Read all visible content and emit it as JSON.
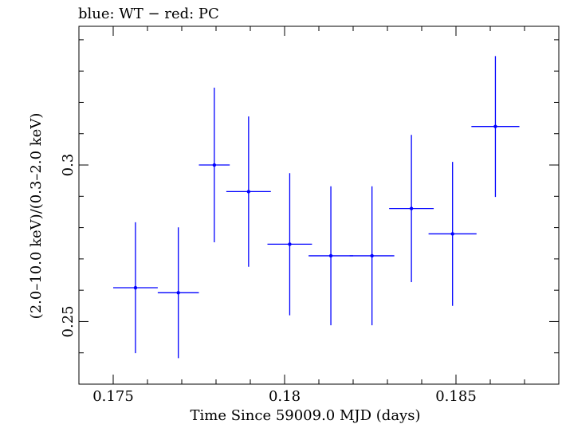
{
  "chart_data": {
    "type": "scatter",
    "title": "blue: WT − red: PC",
    "xlabel": "Time Since 59009.0 MJD (days)",
    "ylabel": "(2.0–10.0 keV)/(0.3–2.0 keV)",
    "xlim": [
      0.174,
      0.188
    ],
    "ylim": [
      0.23,
      0.3443
    ],
    "x_ticks": [
      {
        "value": 0.175,
        "label": "0.175"
      },
      {
        "value": 0.18,
        "label": "0.18"
      },
      {
        "value": 0.185,
        "label": "0.185"
      }
    ],
    "y_ticks": [
      {
        "value": 0.25,
        "label": "0.25"
      },
      {
        "value": 0.3,
        "label": "0.3"
      }
    ],
    "grid": false,
    "series": [
      {
        "color": "#0000ff",
        "points": [
          {
            "x": 0.17565,
            "xerr": 0.00065,
            "y": 0.2608,
            "yerr": 0.0209
          },
          {
            "x": 0.1769,
            "xerr": 0.0006,
            "y": 0.2592,
            "yerr": 0.0209
          },
          {
            "x": 0.17795,
            "xerr": 0.00045,
            "y": 0.3,
            "yerr": 0.0247
          },
          {
            "x": 0.17895,
            "xerr": 0.00065,
            "y": 0.2915,
            "yerr": 0.024
          },
          {
            "x": 0.18015,
            "xerr": 0.00065,
            "y": 0.2747,
            "yerr": 0.0227
          },
          {
            "x": 0.18135,
            "xerr": 0.00065,
            "y": 0.271,
            "yerr": 0.0222
          },
          {
            "x": 0.18255,
            "xerr": 0.00065,
            "y": 0.271,
            "yerr": 0.0222
          },
          {
            "x": 0.1837,
            "xerr": 0.00065,
            "y": 0.2861,
            "yerr": 0.0235
          },
          {
            "x": 0.1849,
            "xerr": 0.0007,
            "y": 0.278,
            "yerr": 0.023
          },
          {
            "x": 0.18615,
            "xerr": 0.0007,
            "y": 0.3123,
            "yerr": 0.0225
          }
        ]
      }
    ]
  }
}
